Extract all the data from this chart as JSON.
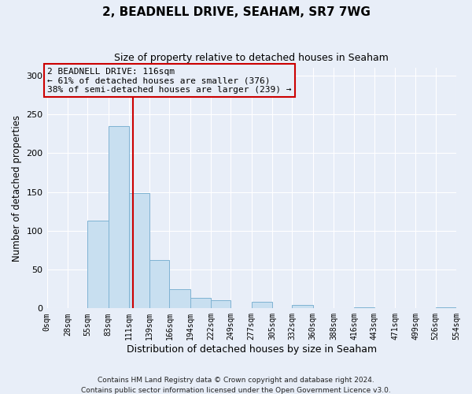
{
  "title": "2, BEADNELL DRIVE, SEAHAM, SR7 7WG",
  "subtitle": "Size of property relative to detached houses in Seaham",
  "xlabel": "Distribution of detached houses by size in Seaham",
  "ylabel": "Number of detached properties",
  "footer_line1": "Contains HM Land Registry data © Crown copyright and database right 2024.",
  "footer_line2": "Contains public sector information licensed under the Open Government Licence v3.0.",
  "bin_edges": [
    0,
    28,
    55,
    83,
    111,
    139,
    166,
    194,
    222,
    249,
    277,
    305,
    332,
    360,
    388,
    416,
    443,
    471,
    499,
    526,
    554
  ],
  "bin_labels": [
    "0sqm",
    "28sqm",
    "55sqm",
    "83sqm",
    "111sqm",
    "139sqm",
    "166sqm",
    "194sqm",
    "222sqm",
    "249sqm",
    "277sqm",
    "305sqm",
    "332sqm",
    "360sqm",
    "388sqm",
    "416sqm",
    "443sqm",
    "471sqm",
    "499sqm",
    "526sqm",
    "554sqm"
  ],
  "bar_heights": [
    0,
    0,
    113,
    235,
    148,
    62,
    25,
    14,
    10,
    0,
    8,
    0,
    4,
    0,
    0,
    1,
    0,
    0,
    0,
    1
  ],
  "bar_color": "#c8dff0",
  "bar_edge_color": "#7fb3d3",
  "vline_x": 116,
  "vline_color": "#cc0000",
  "annotation_text": "2 BEADNELL DRIVE: 116sqm\n← 61% of detached houses are smaller (376)\n38% of semi-detached houses are larger (239) →",
  "annotation_box_facecolor": "#e8eef8",
  "annotation_box_edgecolor": "#cc0000",
  "ylim": [
    0,
    310
  ],
  "yticks": [
    0,
    50,
    100,
    150,
    200,
    250,
    300
  ],
  "background_color": "#e8eef8",
  "grid_color": "#ffffff",
  "title_fontsize": 11,
  "subtitle_fontsize": 9,
  "ylabel_fontsize": 8.5,
  "xlabel_fontsize": 9,
  "tick_fontsize": 7,
  "footer_fontsize": 6.5
}
